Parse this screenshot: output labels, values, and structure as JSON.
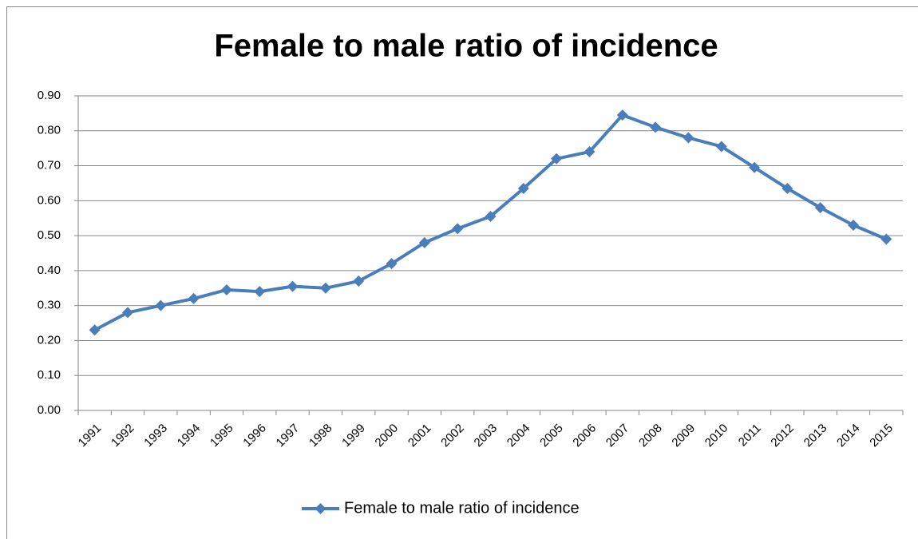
{
  "chart_data": {
    "type": "line",
    "title": "Female to male ratio of incidence",
    "categories": [
      "1991",
      "1992",
      "1993",
      "1994",
      "1995",
      "1996",
      "1997",
      "1998",
      "1999",
      "2000",
      "2001",
      "2002",
      "2003",
      "2004",
      "2005",
      "2006",
      "2007",
      "2008",
      "2009",
      "2010",
      "2011",
      "2012",
      "2013",
      "2014",
      "2015"
    ],
    "series": [
      {
        "name": "Female to male ratio of incidence",
        "color": "#4a7ebb",
        "values": [
          0.23,
          0.28,
          0.3,
          0.32,
          0.345,
          0.34,
          0.355,
          0.35,
          0.37,
          0.42,
          0.48,
          0.52,
          0.555,
          0.635,
          0.72,
          0.74,
          0.845,
          0.81,
          0.78,
          0.755,
          0.695,
          0.635,
          0.58,
          0.53,
          0.49
        ]
      }
    ],
    "ylim": [
      0,
      0.9
    ],
    "yticks": [
      {
        "value": 0,
        "label": "0.00"
      },
      {
        "value": 0.1,
        "label": "0.10"
      },
      {
        "value": 0.2,
        "label": "0.20"
      },
      {
        "value": 0.3,
        "label": "0.30"
      },
      {
        "value": 0.4,
        "label": "0.40"
      },
      {
        "value": 0.5,
        "label": "0.50"
      },
      {
        "value": 0.6,
        "label": "0.60"
      },
      {
        "value": 0.7,
        "label": "0.70"
      },
      {
        "value": 0.8,
        "label": "0.80"
      },
      {
        "value": 0.9,
        "label": "0.90"
      }
    ],
    "grid": true,
    "legend": "bottom"
  }
}
